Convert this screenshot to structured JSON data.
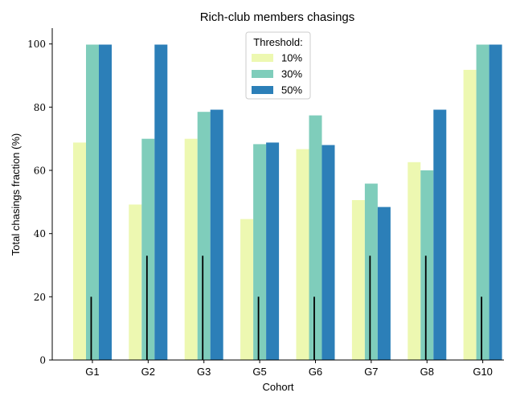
{
  "chart_data": {
    "type": "bar",
    "title": "Rich-club members chasings",
    "xlabel": "Cohort",
    "ylabel": "Total chasings fraction (%)",
    "categories": [
      "G1",
      "G2",
      "G3",
      "G5",
      "G6",
      "G7",
      "G8",
      "G10"
    ],
    "ylim": [
      0,
      105
    ],
    "yticks": [
      0,
      20,
      40,
      60,
      80,
      100
    ],
    "legend": {
      "title": "Threshold:",
      "position": "top-center"
    },
    "series": [
      {
        "name": "10%",
        "color": "#edf8b1",
        "values": [
          68.8,
          49.2,
          70.0,
          44.6,
          66.7,
          50.6,
          62.6,
          91.8
        ]
      },
      {
        "name": "30%",
        "color": "#7fcdbb",
        "values": [
          99.8,
          70.0,
          78.5,
          68.3,
          77.4,
          55.8,
          60.0,
          99.8
        ]
      },
      {
        "name": "50%",
        "color": "#2c7fb8",
        "values": [
          99.8,
          99.8,
          79.2,
          68.8,
          68.0,
          48.4,
          79.2,
          99.8
        ]
      }
    ],
    "error_lines": [
      20,
      33,
      33,
      20,
      20,
      33,
      33,
      20
    ],
    "grid": false
  }
}
